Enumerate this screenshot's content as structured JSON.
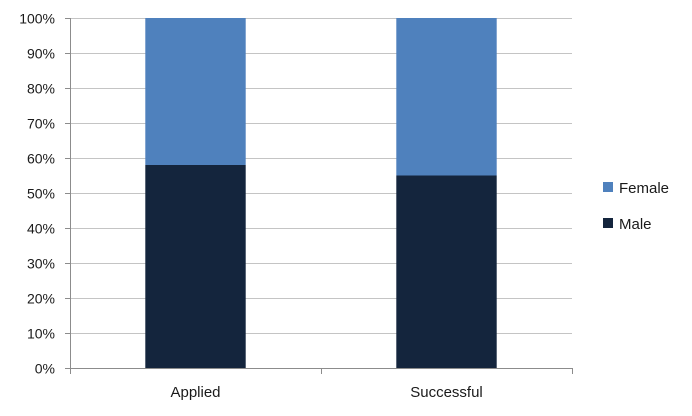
{
  "chart_data": {
    "type": "bar",
    "stacked": true,
    "percent": true,
    "categories": [
      "Applied",
      "Successful"
    ],
    "series": [
      {
        "name": "Male",
        "values": [
          58,
          55
        ],
        "color": "#14253d"
      },
      {
        "name": "Female",
        "values": [
          42,
          45
        ],
        "color": "#4f81bd"
      }
    ],
    "y_ticks": [
      "0%",
      "10%",
      "20%",
      "30%",
      "40%",
      "50%",
      "60%",
      "70%",
      "80%",
      "90%",
      "100%"
    ],
    "ylim": [
      0,
      100
    ],
    "grid": true,
    "legend_position": "right",
    "legend_order": [
      "Female",
      "Male"
    ],
    "title": "",
    "xlabel": "",
    "ylabel": ""
  }
}
